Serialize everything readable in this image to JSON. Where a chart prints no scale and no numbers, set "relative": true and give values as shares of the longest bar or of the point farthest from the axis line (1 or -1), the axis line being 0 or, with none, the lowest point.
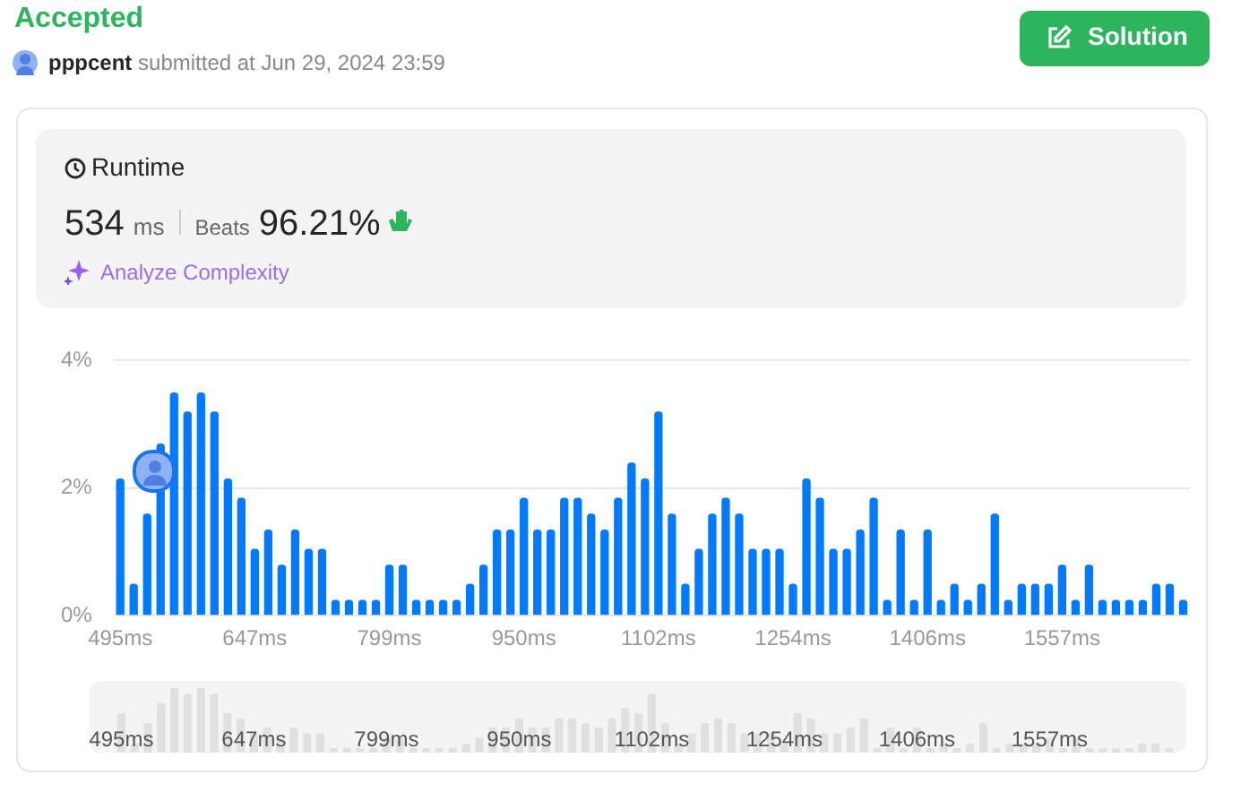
{
  "chart_data": [
    {
      "type": "other",
      "title": "Accepted",
      "annotations": [
        "pppcent",
        "submitted at Jun 29, 2024 23:59",
        "Solution",
        "Runtime",
        "534",
        "ms",
        "Beats",
        "96.21%",
        "Analyze Complexity"
      ]
    },
    {
      "type": "bar",
      "categories": [
        "495ms",
        null,
        null,
        null,
        null,
        null,
        null,
        null,
        null,
        null,
        "647ms",
        null,
        null,
        null,
        null,
        null,
        null,
        null,
        null,
        null,
        "799ms",
        null,
        null,
        null,
        null,
        null,
        null,
        null,
        null,
        null,
        "950ms",
        null,
        null,
        null,
        null,
        null,
        null,
        null,
        null,
        null,
        "1102ms",
        null,
        null,
        null,
        null,
        null,
        null,
        null,
        null,
        null,
        "1254ms",
        null,
        null,
        null,
        null,
        null,
        null,
        null,
        null,
        null,
        "1406ms",
        null,
        null,
        null,
        null,
        null,
        null,
        null,
        null,
        null,
        "1557ms",
        null,
        null,
        null,
        null,
        null,
        null,
        null,
        null,
        null
      ],
      "values": [
        2.15,
        0.5,
        1.6,
        2.7,
        3.5,
        3.2,
        3.5,
        3.2,
        2.15,
        1.85,
        1.05,
        1.35,
        0.8,
        1.35,
        1.05,
        1.05,
        0.25,
        0.25,
        0.25,
        0.25,
        0.8,
        0.8,
        0.25,
        0.25,
        0.25,
        0.25,
        0.5,
        0.8,
        1.35,
        1.35,
        1.85,
        1.35,
        1.35,
        1.85,
        1.85,
        1.6,
        1.35,
        1.85,
        2.4,
        2.15,
        3.2,
        1.6,
        0.5,
        1.05,
        1.6,
        1.85,
        1.6,
        1.05,
        1.05,
        1.05,
        0.5,
        2.15,
        1.85,
        1.05,
        1.05,
        1.35,
        1.85,
        0.25,
        1.35,
        0.25,
        1.35,
        0.25,
        0.5,
        0.25,
        0.5,
        1.6,
        0.25,
        0.5,
        0.5,
        0.5,
        0.8,
        0.25,
        0.8,
        0.25,
        0.25,
        0.25,
        0.25,
        0.5,
        0.5,
        0.25
      ],
      "color": "#007aff",
      "ylim": [
        0,
        4
      ],
      "yticks": [
        {
          "value": 0,
          "label": "0%"
        },
        {
          "value": 2,
          "label": "2%"
        },
        {
          "value": 4,
          "label": "4%"
        }
      ],
      "grid": "y"
    },
    {
      "type": "bar",
      "relative": true,
      "categories": [
        "495ms",
        null,
        null,
        null,
        null,
        null,
        null,
        null,
        null,
        null,
        "647ms",
        null,
        null,
        null,
        null,
        null,
        null,
        null,
        null,
        null,
        "799ms",
        null,
        null,
        null,
        null,
        null,
        null,
        null,
        null,
        null,
        "950ms",
        null,
        null,
        null,
        null,
        null,
        null,
        null,
        null,
        null,
        "1102ms",
        null,
        null,
        null,
        null,
        null,
        null,
        null,
        null,
        null,
        "1254ms",
        null,
        null,
        null,
        null,
        null,
        null,
        null,
        null,
        null,
        "1406ms",
        null,
        null,
        null,
        null,
        null,
        null,
        null,
        null,
        null,
        "1557ms",
        null,
        null,
        null,
        null,
        null,
        null,
        null,
        null,
        null
      ],
      "values": [
        0.61,
        0.14,
        0.46,
        0.77,
        1,
        0.91,
        1,
        0.91,
        0.61,
        0.53,
        0.3,
        0.39,
        0.23,
        0.39,
        0.3,
        0.3,
        0.07,
        0.07,
        0.07,
        0.07,
        0.23,
        0.23,
        0.07,
        0.07,
        0.07,
        0.07,
        0.14,
        0.23,
        0.39,
        0.39,
        0.53,
        0.39,
        0.39,
        0.53,
        0.53,
        0.46,
        0.39,
        0.53,
        0.69,
        0.61,
        0.91,
        0.46,
        0.14,
        0.3,
        0.46,
        0.53,
        0.46,
        0.3,
        0.3,
        0.3,
        0.14,
        0.61,
        0.53,
        0.3,
        0.3,
        0.39,
        0.53,
        0.07,
        0.39,
        0.07,
        0.39,
        0.07,
        0.14,
        0.07,
        0.14,
        0.46,
        0.07,
        0.14,
        0.14,
        0.14,
        0.23,
        0.07,
        0.23,
        0.07,
        0.07,
        0.07,
        0.07,
        0.14,
        0.14,
        0.07
      ],
      "color": "#e0e0e0"
    }
  ]
}
